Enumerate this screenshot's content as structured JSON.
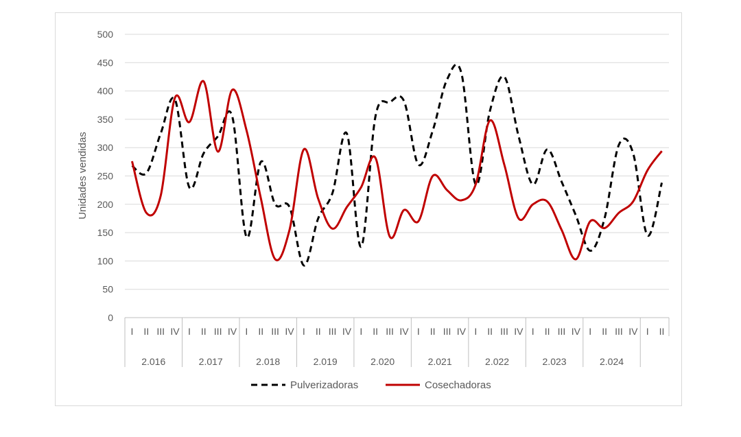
{
  "chart_data": {
    "type": "line",
    "title": "",
    "xlabel": "",
    "ylabel": "Unidades vendidas",
    "ylim": [
      0,
      500
    ],
    "yticks": [
      0,
      50,
      100,
      150,
      200,
      250,
      300,
      350,
      400,
      450,
      500
    ],
    "quarter_labels": [
      "I",
      "II",
      "III",
      "IV",
      "I",
      "II",
      "III",
      "IV",
      "I",
      "II",
      "III",
      "IV",
      "I",
      "II",
      "III",
      "IV",
      "I",
      "II",
      "III",
      "IV",
      "I",
      "II",
      "III",
      "IV",
      "I",
      "II",
      "III",
      "IV",
      "I",
      "II",
      "III",
      "IV",
      "I",
      "II",
      "III",
      "IV",
      "I",
      "II"
    ],
    "years": [
      {
        "label": "2.016",
        "quarters": 4
      },
      {
        "label": "2.017",
        "quarters": 4
      },
      {
        "label": "2.018",
        "quarters": 4
      },
      {
        "label": "2.019",
        "quarters": 4
      },
      {
        "label": "2.020",
        "quarters": 4
      },
      {
        "label": "2.021",
        "quarters": 4
      },
      {
        "label": "2.022",
        "quarters": 4
      },
      {
        "label": "2.023",
        "quarters": 4
      },
      {
        "label": "2.024",
        "quarters": 4
      },
      {
        "label": "",
        "quarters": 2
      }
    ],
    "grid": true,
    "legend_position": "bottom",
    "series": [
      {
        "name": "Pulverizadoras",
        "color": "#000000",
        "style": "dashed",
        "values": [
          268,
          255,
          325,
          385,
          230,
          290,
          320,
          355,
          142,
          275,
          200,
          195,
          92,
          175,
          220,
          325,
          125,
          355,
          380,
          382,
          270,
          330,
          420,
          432,
          235,
          365,
          425,
          320,
          235,
          297,
          240,
          180,
          118,
          175,
          305,
          290,
          145,
          238
        ]
      },
      {
        "name": "Cosechadoras",
        "color": "#c00000",
        "style": "solid",
        "values": [
          276,
          185,
          215,
          388,
          345,
          417,
          293,
          402,
          330,
          210,
          103,
          155,
          297,
          210,
          157,
          195,
          230,
          282,
          143,
          190,
          170,
          250,
          225,
          207,
          235,
          348,
          270,
          175,
          200,
          205,
          155,
          103,
          170,
          158,
          185,
          205,
          260,
          294
        ]
      }
    ]
  }
}
